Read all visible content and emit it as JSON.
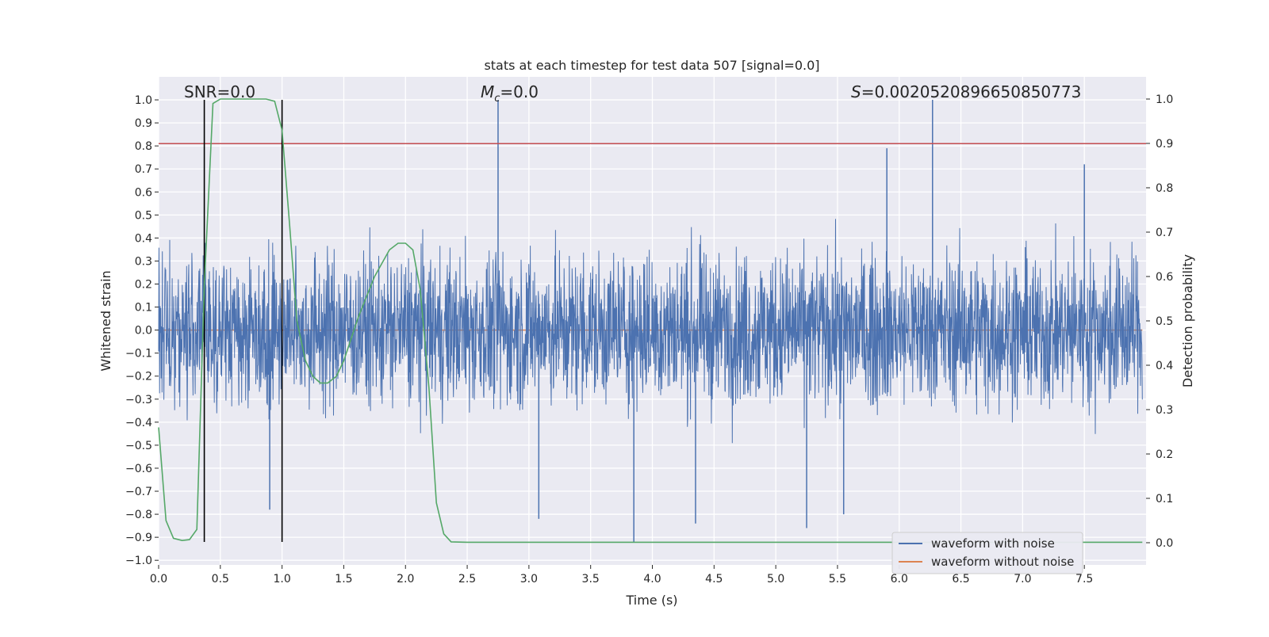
{
  "chart_data": {
    "type": "line",
    "title": "stats at each timestep for test data 507 [signal=0.0]",
    "xlabel": "Time (s)",
    "ylabel": "Whitened strain",
    "y2label": "Detection probability",
    "xlim": [
      0.0,
      8.0
    ],
    "ylim": [
      -1.02,
      1.1
    ],
    "y2lim": [
      -0.05,
      1.05
    ],
    "xticks": [
      0.0,
      0.5,
      1.0,
      1.5,
      2.0,
      2.5,
      3.0,
      3.5,
      4.0,
      4.5,
      5.0,
      5.5,
      6.0,
      6.5,
      7.0,
      7.5
    ],
    "xtick_labels": [
      "0.0",
      "0.5",
      "1.0",
      "1.5",
      "2.0",
      "2.5",
      "3.0",
      "3.5",
      "4.0",
      "4.5",
      "5.0",
      "5.5",
      "6.0",
      "6.5",
      "7.0",
      "7.5"
    ],
    "yticks": [
      -1.0,
      -0.9,
      -0.8,
      -0.7,
      -0.6,
      -0.5,
      -0.4,
      -0.3,
      -0.2,
      -0.1,
      0.0,
      0.1,
      0.2,
      0.3,
      0.4,
      0.5,
      0.6,
      0.7,
      0.8,
      0.9,
      1.0
    ],
    "ytick_labels": [
      "−1.0",
      "−0.9",
      "−0.8",
      "−0.7",
      "−0.6",
      "−0.5",
      "−0.4",
      "−0.3",
      "−0.2",
      "−0.1",
      "0.0",
      "0.1",
      "0.2",
      "0.3",
      "0.4",
      "0.5",
      "0.6",
      "0.7",
      "0.8",
      "0.9",
      "1.0"
    ],
    "y2ticks": [
      0.0,
      0.1,
      0.2,
      0.3,
      0.4,
      0.5,
      0.6,
      0.7,
      0.8,
      0.9,
      1.0
    ],
    "y2tick_labels": [
      "0.0",
      "0.1",
      "0.2",
      "0.3",
      "0.4",
      "0.5",
      "0.6",
      "0.7",
      "0.8",
      "0.9",
      "1.0"
    ],
    "annotations": {
      "snr": "SNR=0.0",
      "mc_symbol": "M",
      "mc_subscript": "c",
      "mc_value": "=0.0",
      "s_symbol": "S",
      "s_value": "=0.0020520896650850773"
    },
    "legend": {
      "placement": "lower-right",
      "entries": [
        {
          "label": "waveform with noise",
          "color": "#4c72b0"
        },
        {
          "label": "waveform without noise",
          "color": "#dd8452"
        }
      ]
    },
    "threshold_line": {
      "y": 0.81,
      "color": "#c44e52"
    },
    "vertical_markers": {
      "x": [
        0.37,
        1.0
      ],
      "y_range": [
        -0.92,
        1.0
      ],
      "color": "#000000"
    },
    "noise_series": {
      "name": "waveform with noise",
      "color": "#4c72b0",
      "typical_amplitude": 0.26,
      "spikes": [
        {
          "x": 2.75,
          "y": 1.0
        },
        {
          "x": 6.27,
          "y": 1.0
        },
        {
          "x": 3.85,
          "y": -0.92
        },
        {
          "x": 0.9,
          "y": -0.78
        },
        {
          "x": 3.08,
          "y": -0.82
        },
        {
          "x": 4.35,
          "y": -0.84
        },
        {
          "x": 5.25,
          "y": -0.86
        },
        {
          "x": 5.55,
          "y": -0.8
        },
        {
          "x": 7.5,
          "y": 0.72
        },
        {
          "x": 5.9,
          "y": 0.79
        }
      ]
    },
    "clean_series": {
      "name": "waveform without noise",
      "color": "#dd8452",
      "x": [
        0.0,
        7.97
      ],
      "y": [
        0.0,
        0.0
      ]
    },
    "probability_series": {
      "name": "detection probability",
      "color": "#55a868",
      "x": [
        0.0,
        0.06,
        0.12,
        0.19,
        0.25,
        0.31,
        0.37,
        0.44,
        0.5,
        0.62,
        0.75,
        0.87,
        0.94,
        1.0,
        1.06,
        1.12,
        1.19,
        1.25,
        1.31,
        1.37,
        1.44,
        1.5,
        1.62,
        1.75,
        1.87,
        1.94,
        2.0,
        2.06,
        2.12,
        2.19,
        2.25,
        2.31,
        2.37,
        2.5,
        3.0,
        4.0,
        5.0,
        6.0,
        7.0,
        7.97
      ],
      "y": [
        0.26,
        0.05,
        0.01,
        0.005,
        0.007,
        0.03,
        0.58,
        0.99,
        1.0,
        1.0,
        1.0,
        1.0,
        0.995,
        0.93,
        0.72,
        0.5,
        0.41,
        0.375,
        0.36,
        0.36,
        0.375,
        0.41,
        0.51,
        0.6,
        0.66,
        0.675,
        0.675,
        0.66,
        0.57,
        0.35,
        0.09,
        0.02,
        0.002,
        0.001,
        0.001,
        0.001,
        0.001,
        0.001,
        0.001,
        0.001
      ]
    }
  }
}
